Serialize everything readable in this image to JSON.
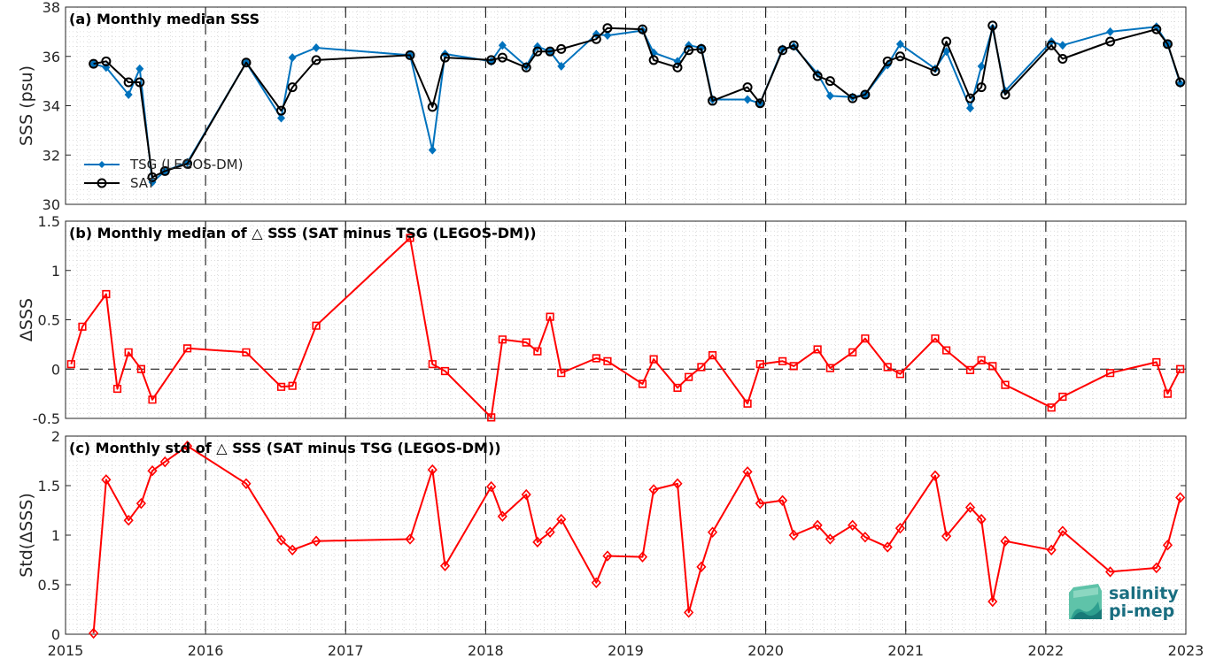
{
  "chart_data": [
    {
      "type": "line",
      "title": "(a) Monthly median SSS",
      "ylabel": "SSS (psu)",
      "xlim": [
        2015,
        2023
      ],
      "ylim": [
        30,
        38
      ],
      "yticks": [
        30,
        32,
        34,
        36,
        38
      ],
      "x_tick_labels": [
        "2015",
        "2016",
        "2017",
        "2018",
        "2019",
        "2020",
        "2021",
        "2022",
        "2023"
      ],
      "vertical_dashed_lines_at": [
        2016,
        2017,
        2018,
        2019,
        2020,
        2021,
        2022
      ],
      "grid": "dotted minor",
      "legend": {
        "placement": "bottom-left",
        "entries": [
          "TSG (LEGOS-DM)",
          "SAT"
        ]
      },
      "series": [
        {
          "name": "TSG (LEGOS-DM)",
          "color": "#0072BD",
          "marker": "diamond",
          "x": [
            2015.2,
            2015.29,
            2015.45,
            2015.53,
            2015.62,
            2015.71,
            2015.87,
            2016.29,
            2016.54,
            2016.62,
            2016.79,
            2017.46,
            2017.62,
            2017.71,
            2018.04,
            2018.12,
            2018.29,
            2018.37,
            2018.46,
            2018.54,
            2018.79,
            2018.87,
            2019.12,
            2019.2,
            2019.37,
            2019.45,
            2019.54,
            2019.62,
            2019.87,
            2019.96,
            2020.12,
            2020.2,
            2020.37,
            2020.46,
            2020.62,
            2020.71,
            2020.87,
            2020.96,
            2021.21,
            2021.29,
            2021.46,
            2021.54,
            2021.62,
            2021.71,
            2022.04,
            2022.12,
            2022.46,
            2022.79,
            2022.87,
            2022.96
          ],
          "values": [
            35.7,
            35.55,
            34.45,
            35.5,
            30.9,
            31.35,
            31.7,
            35.75,
            33.5,
            35.95,
            36.35,
            36.05,
            32.2,
            36.1,
            35.8,
            36.45,
            35.6,
            36.4,
            36.2,
            35.6,
            36.9,
            36.85,
            37.05,
            36.15,
            35.8,
            36.45,
            36.35,
            34.25,
            34.25,
            34.1,
            36.3,
            36.4,
            35.3,
            34.4,
            34.35,
            34.45,
            35.65,
            36.5,
            35.5,
            36.2,
            33.9,
            35.6,
            37.15,
            34.6,
            36.6,
            36.45,
            37.0,
            37.2,
            36.5,
            34.9
          ]
        },
        {
          "name": "SAT",
          "color": "#000000",
          "marker": "circle",
          "x": [
            2015.2,
            2015.29,
            2015.45,
            2015.53,
            2015.62,
            2015.71,
            2015.87,
            2016.29,
            2016.54,
            2016.62,
            2016.79,
            2017.46,
            2017.62,
            2017.71,
            2018.04,
            2018.12,
            2018.29,
            2018.37,
            2018.46,
            2018.54,
            2018.79,
            2018.87,
            2019.12,
            2019.2,
            2019.37,
            2019.45,
            2019.54,
            2019.62,
            2019.87,
            2019.96,
            2020.12,
            2020.2,
            2020.37,
            2020.46,
            2020.62,
            2020.71,
            2020.87,
            2020.96,
            2021.21,
            2021.29,
            2021.46,
            2021.54,
            2021.62,
            2021.71,
            2022.04,
            2022.12,
            2022.46,
            2022.79,
            2022.87,
            2022.96
          ],
          "values": [
            35.7,
            35.8,
            34.95,
            34.95,
            31.1,
            31.35,
            31.65,
            35.75,
            33.8,
            34.75,
            35.85,
            36.05,
            33.95,
            35.95,
            35.85,
            35.95,
            35.55,
            36.2,
            36.2,
            36.3,
            36.7,
            37.15,
            37.1,
            35.85,
            35.55,
            36.25,
            36.3,
            34.2,
            34.75,
            34.1,
            36.25,
            36.45,
            35.2,
            35.0,
            34.3,
            34.45,
            35.8,
            36.0,
            35.4,
            36.6,
            34.3,
            34.75,
            37.25,
            34.45,
            36.45,
            35.9,
            36.6,
            37.1,
            36.5,
            34.95
          ]
        }
      ]
    },
    {
      "type": "line",
      "title": "(b) Monthly median of △ SSS (SAT minus TSG (LEGOS-DM))",
      "ylabel": "ΔSSS",
      "xlim": [
        2015,
        2023
      ],
      "ylim": [
        -0.5,
        1.5
      ],
      "yticks": [
        -0.5,
        0,
        0.5,
        1,
        1.5
      ],
      "ytick_labels": [
        "-0.5",
        "0",
        "0.5",
        "1",
        "1.5"
      ],
      "x_tick_labels": [
        "2015",
        "2016",
        "2017",
        "2018",
        "2019",
        "2020",
        "2021",
        "2022",
        "2023"
      ],
      "zero_line": "dashed",
      "vertical_dashed_lines_at": [
        2016,
        2017,
        2018,
        2019,
        2020,
        2021,
        2022
      ],
      "grid": "dotted minor",
      "series": [
        {
          "color": "#FF0000",
          "marker": "square",
          "x": [
            2015.04,
            2015.12,
            2015.29,
            2015.37,
            2015.45,
            2015.54,
            2015.62,
            2015.87,
            2016.29,
            2016.54,
            2016.62,
            2016.79,
            2017.46,
            2017.62,
            2017.71,
            2018.04,
            2018.12,
            2018.29,
            2018.37,
            2018.46,
            2018.54,
            2018.79,
            2018.87,
            2019.12,
            2019.2,
            2019.37,
            2019.45,
            2019.54,
            2019.62,
            2019.87,
            2019.96,
            2020.12,
            2020.2,
            2020.37,
            2020.46,
            2020.62,
            2020.71,
            2020.87,
            2020.96,
            2021.21,
            2021.29,
            2021.46,
            2021.54,
            2021.62,
            2021.71,
            2022.04,
            2022.12,
            2022.46,
            2022.79,
            2022.87,
            2022.96
          ],
          "values": [
            0.05,
            0.43,
            0.76,
            -0.2,
            0.17,
            0.0,
            -0.31,
            0.21,
            0.17,
            -0.18,
            -0.17,
            0.44,
            1.33,
            0.05,
            -0.02,
            -0.49,
            0.3,
            0.27,
            0.18,
            0.53,
            -0.04,
            0.11,
            0.08,
            -0.15,
            0.1,
            -0.19,
            -0.08,
            0.02,
            0.14,
            -0.35,
            0.05,
            0.08,
            0.03,
            0.2,
            0.01,
            0.17,
            0.31,
            0.02,
            -0.05,
            0.31,
            0.19,
            -0.01,
            0.09,
            0.03,
            -0.16,
            -0.39,
            -0.28,
            -0.04,
            0.07,
            -0.25,
            0.0
          ]
        }
      ]
    },
    {
      "type": "line",
      "title": "(c) Monthly std of △ SSS (SAT minus TSG (LEGOS-DM))",
      "ylabel": "Std(ΔSSS)",
      "xlim": [
        2015,
        2023
      ],
      "ylim": [
        0,
        2
      ],
      "yticks": [
        0,
        0.5,
        1,
        1.5,
        2
      ],
      "ytick_labels": [
        "0",
        "0.5",
        "1",
        "1.5",
        "2"
      ],
      "x_tick_labels": [
        "2015",
        "2016",
        "2017",
        "2018",
        "2019",
        "2020",
        "2021",
        "2022",
        "2023"
      ],
      "vertical_dashed_lines_at": [
        2016,
        2017,
        2018,
        2019,
        2020,
        2021,
        2022
      ],
      "grid": "dotted minor",
      "series": [
        {
          "color": "#FF0000",
          "marker": "diamond",
          "x": [
            2015.2,
            2015.29,
            2015.45,
            2015.54,
            2015.62,
            2015.71,
            2015.87,
            2016.29,
            2016.54,
            2016.62,
            2016.79,
            2017.46,
            2017.62,
            2017.71,
            2018.04,
            2018.12,
            2018.29,
            2018.37,
            2018.46,
            2018.54,
            2018.79,
            2018.87,
            2019.12,
            2019.2,
            2019.37,
            2019.45,
            2019.54,
            2019.62,
            2019.87,
            2019.96,
            2020.12,
            2020.2,
            2020.37,
            2020.46,
            2020.62,
            2020.71,
            2020.87,
            2020.96,
            2021.21,
            2021.29,
            2021.46,
            2021.54,
            2021.62,
            2021.71,
            2022.04,
            2022.12,
            2022.46,
            2022.79,
            2022.87,
            2022.96
          ],
          "values": [
            0.01,
            1.56,
            1.15,
            1.32,
            1.65,
            1.74,
            1.9,
            1.52,
            0.95,
            0.85,
            0.94,
            0.96,
            1.66,
            0.69,
            1.49,
            1.19,
            1.41,
            0.93,
            1.03,
            1.16,
            0.52,
            0.79,
            0.78,
            1.46,
            1.52,
            0.22,
            0.68,
            1.03,
            1.64,
            1.32,
            1.35,
            1.0,
            1.1,
            0.96,
            1.1,
            0.98,
            0.88,
            1.07,
            1.6,
            0.99,
            1.28,
            1.16,
            0.33,
            0.94,
            0.85,
            1.04,
            0.63,
            0.67,
            0.9,
            1.38
          ]
        }
      ]
    }
  ],
  "logo": {
    "line1": "salinity",
    "line2": "pi-mep"
  },
  "colors": {
    "tsg": "#0072BD",
    "sat": "#000000",
    "delta": "#FF0000",
    "grid": "#c8c8c8",
    "logo": "#1a6e80"
  }
}
